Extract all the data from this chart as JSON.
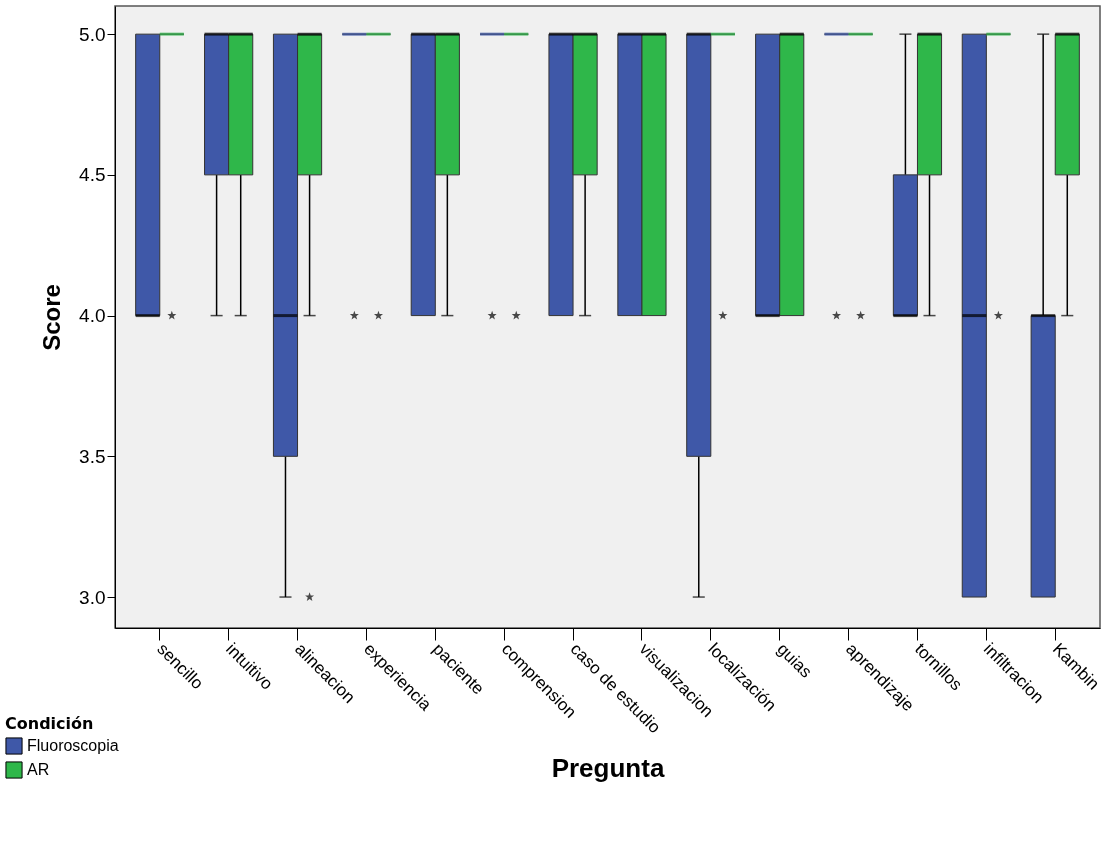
{
  "chart_data": {
    "type": "box",
    "xlabel": "Pregunta",
    "ylabel": "Score",
    "legend_title": "Condición",
    "legend": "bottom left",
    "grid": false,
    "categories": [
      "sencillo",
      "intuitivo",
      "alineacion",
      "experiencia",
      "paciente",
      "comprension",
      "caso de estudio",
      "visualizacion",
      "localización",
      "guias",
      "aprendizaje",
      "tornillos",
      "infiltracion",
      "Kambin"
    ],
    "ylim": [
      2.89,
      5.1
    ],
    "yticks": [
      {
        "value": 3,
        "label": "3.0"
      },
      {
        "value": 3.5,
        "label": "3.5"
      },
      {
        "value": 4,
        "label": "4.0"
      },
      {
        "value": 4.5,
        "label": "4.5"
      },
      {
        "value": 5,
        "label": "5.0"
      }
    ],
    "series": [
      {
        "name": "Fluoroscopia",
        "color": "#3f58a8",
        "boxes": [
          {
            "low": 4,
            "q1": 4,
            "median": 4,
            "q3": 5,
            "high": 5
          },
          {
            "low": 4,
            "q1": 4.5,
            "median": 5,
            "q3": 5,
            "high": 5
          },
          {
            "low": 3,
            "q1": 3.5,
            "median": 4,
            "q3": 5,
            "high": 5
          },
          {
            "low": 5,
            "q1": 5,
            "median": 5,
            "q3": 5,
            "high": 5,
            "outliers": [
              4
            ]
          },
          {
            "low": 4,
            "q1": 4,
            "median": 5,
            "q3": 5,
            "high": 5
          },
          {
            "low": 5,
            "q1": 5,
            "median": 5,
            "q3": 5,
            "high": 5,
            "outliers": [
              4
            ]
          },
          {
            "low": 4,
            "q1": 4,
            "median": 5,
            "q3": 5,
            "high": 5
          },
          {
            "low": 4,
            "q1": 4,
            "median": 5,
            "q3": 5,
            "high": 5
          },
          {
            "low": 3,
            "q1": 3.5,
            "median": 5,
            "q3": 5,
            "high": 5
          },
          {
            "low": 4,
            "q1": 4,
            "median": 4,
            "q3": 5,
            "high": 5
          },
          {
            "low": 5,
            "q1": 5,
            "median": 5,
            "q3": 5,
            "high": 5,
            "outliers": [
              4
            ]
          },
          {
            "low": 4,
            "q1": 4,
            "median": 4,
            "q3": 4.5,
            "high": 5
          },
          {
            "low": 3,
            "q1": 3,
            "median": 4,
            "q3": 5,
            "high": 5
          },
          {
            "low": 3,
            "q1": 3,
            "median": 4,
            "q3": 4,
            "high": 5
          }
        ]
      },
      {
        "name": "AR",
        "color": "#2fb74a",
        "boxes": [
          {
            "low": 5,
            "q1": 5,
            "median": 5,
            "q3": 5,
            "high": 5,
            "outliers": [
              4
            ]
          },
          {
            "low": 4,
            "q1": 4.5,
            "median": 5,
            "q3": 5,
            "high": 5
          },
          {
            "low": 4,
            "q1": 4.5,
            "median": 5,
            "q3": 5,
            "high": 5,
            "outliers": [
              3
            ]
          },
          {
            "low": 5,
            "q1": 5,
            "median": 5,
            "q3": 5,
            "high": 5,
            "outliers": [
              4
            ]
          },
          {
            "low": 4,
            "q1": 4.5,
            "median": 5,
            "q3": 5,
            "high": 5
          },
          {
            "low": 5,
            "q1": 5,
            "median": 5,
            "q3": 5,
            "high": 5,
            "outliers": [
              4
            ]
          },
          {
            "low": 4,
            "q1": 4.5,
            "median": 5,
            "q3": 5,
            "high": 5
          },
          {
            "low": 4,
            "q1": 4,
            "median": 5,
            "q3": 5,
            "high": 5
          },
          {
            "low": 5,
            "q1": 5,
            "median": 5,
            "q3": 5,
            "high": 5,
            "outliers": [
              4
            ]
          },
          {
            "low": 4,
            "q1": 4,
            "median": 5,
            "q3": 5,
            "high": 5
          },
          {
            "low": 5,
            "q1": 5,
            "median": 5,
            "q3": 5,
            "high": 5,
            "outliers": [
              4
            ]
          },
          {
            "low": 4,
            "q1": 4.5,
            "median": 5,
            "q3": 5,
            "high": 5
          },
          {
            "low": 5,
            "q1": 5,
            "median": 5,
            "q3": 5,
            "high": 5,
            "outliers": [
              4
            ]
          },
          {
            "low": 4,
            "q1": 4.5,
            "median": 5,
            "q3": 5,
            "high": 5
          }
        ]
      }
    ]
  }
}
